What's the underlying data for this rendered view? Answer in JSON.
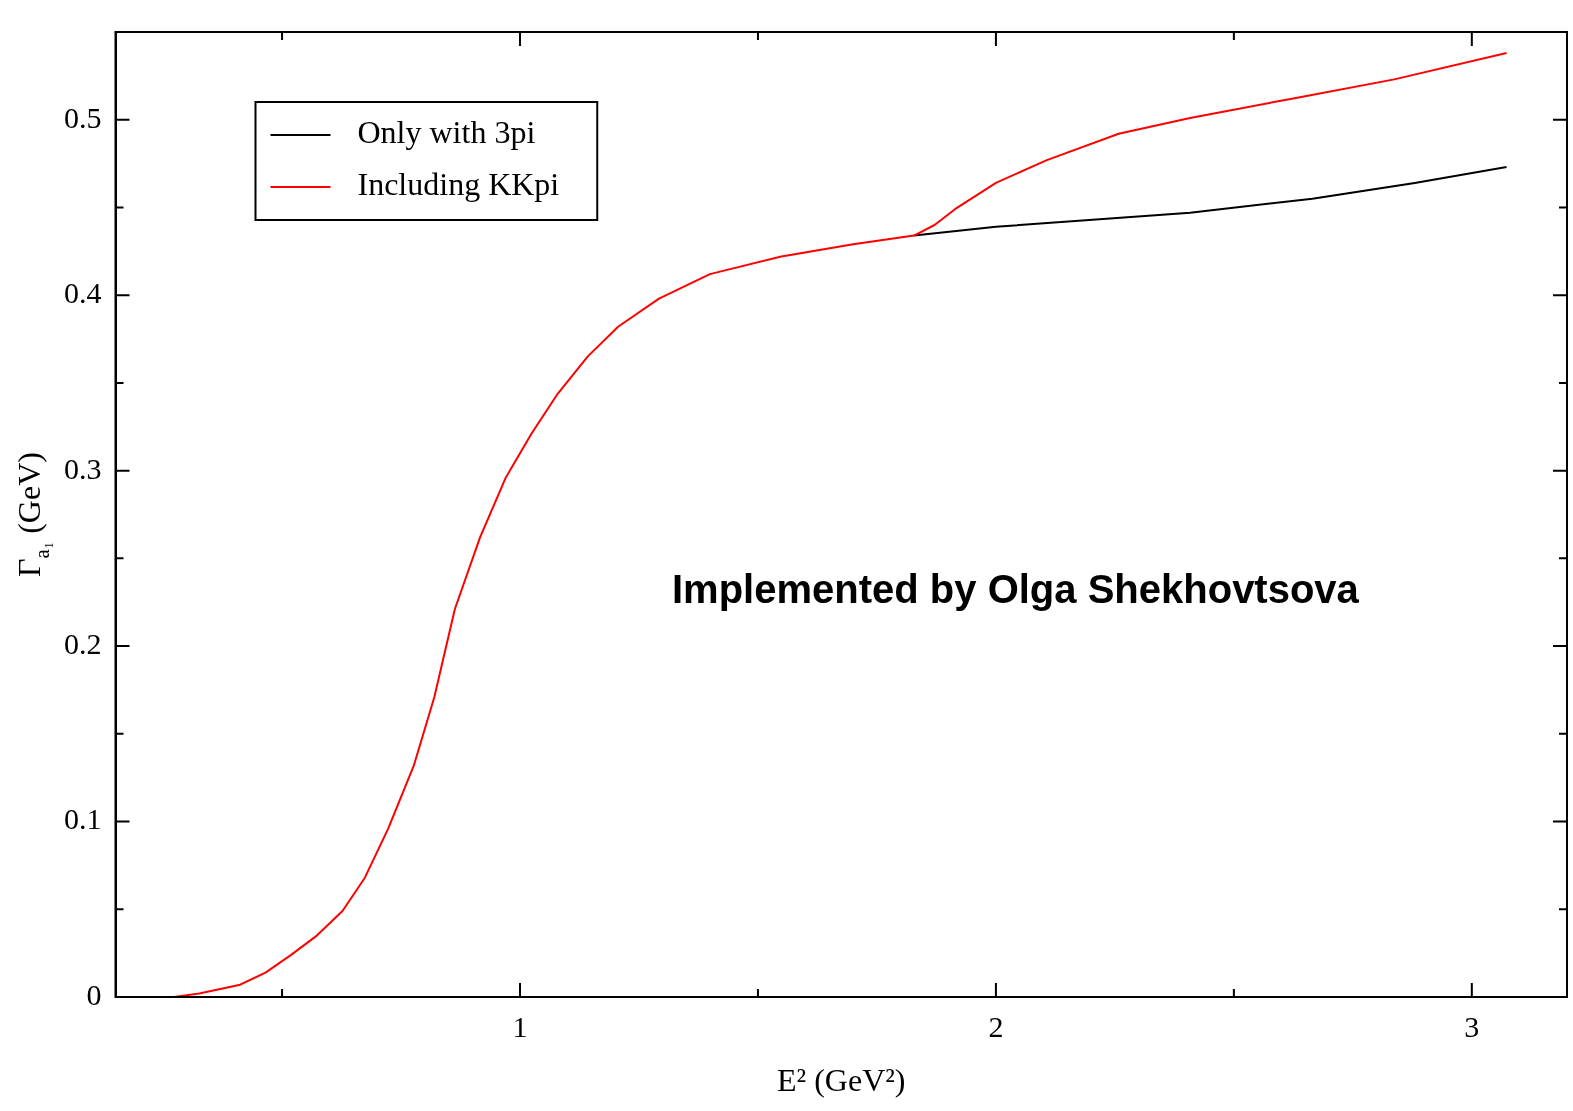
{
  "chart_data": {
    "type": "line",
    "xlabel": "E² (GeV²)",
    "ylabel": "Γ$_{a₁}$ (GeV)",
    "annotations": [
      "Implemented by Olga Shekhovtsova"
    ],
    "xlim": [
      0.15,
      3.2
    ],
    "ylim": [
      0,
      0.55
    ],
    "xticks": [
      {
        "value": 0.5,
        "label": null
      },
      1,
      {
        "value": 1.5,
        "label": null
      },
      2,
      {
        "value": 2.5,
        "label": null
      },
      3
    ],
    "yticks": [
      0,
      {
        "value": 0.05,
        "label": null
      },
      0.1,
      {
        "value": 0.15,
        "label": null
      },
      0.2,
      {
        "value": 0.25,
        "label": null
      },
      0.3,
      {
        "value": 0.35,
        "label": null
      },
      0.4,
      {
        "value": 0.45,
        "label": null
      },
      0.5
    ],
    "legend": "top left",
    "grid": false,
    "marker": "none",
    "line_style": "solid",
    "series": [
      {
        "name": "Only with 3pi",
        "color": "#000000",
        "x": [
          1.828,
          2.0,
          2.408,
          2.665,
          2.88,
          3.073
        ],
        "values": [
          0.434,
          0.439,
          0.447,
          0.455,
          0.464,
          0.473
        ]
      },
      {
        "name": "Including KKpi",
        "color": "#ff0000",
        "x": [
          0.273,
          0.326,
          0.412,
          0.466,
          0.519,
          0.573,
          0.627,
          0.674,
          0.723,
          0.777,
          0.82,
          0.863,
          0.916,
          0.97,
          1.024,
          1.077,
          1.142,
          1.206,
          1.292,
          1.399,
          1.549,
          1.7,
          1.828,
          1.871,
          1.914,
          2.0,
          2.107,
          2.258,
          2.408,
          2.622,
          2.837,
          3.073
        ],
        "values": [
          0,
          0.002,
          0.007,
          0.014,
          0.024,
          0.035,
          0.049,
          0.068,
          0.096,
          0.132,
          0.171,
          0.221,
          0.262,
          0.296,
          0.321,
          0.343,
          0.365,
          0.382,
          0.398,
          0.412,
          0.422,
          0.429,
          0.434,
          0.44,
          0.449,
          0.464,
          0.477,
          0.492,
          0.501,
          0.512,
          0.523,
          0.538
        ]
      }
    ]
  }
}
